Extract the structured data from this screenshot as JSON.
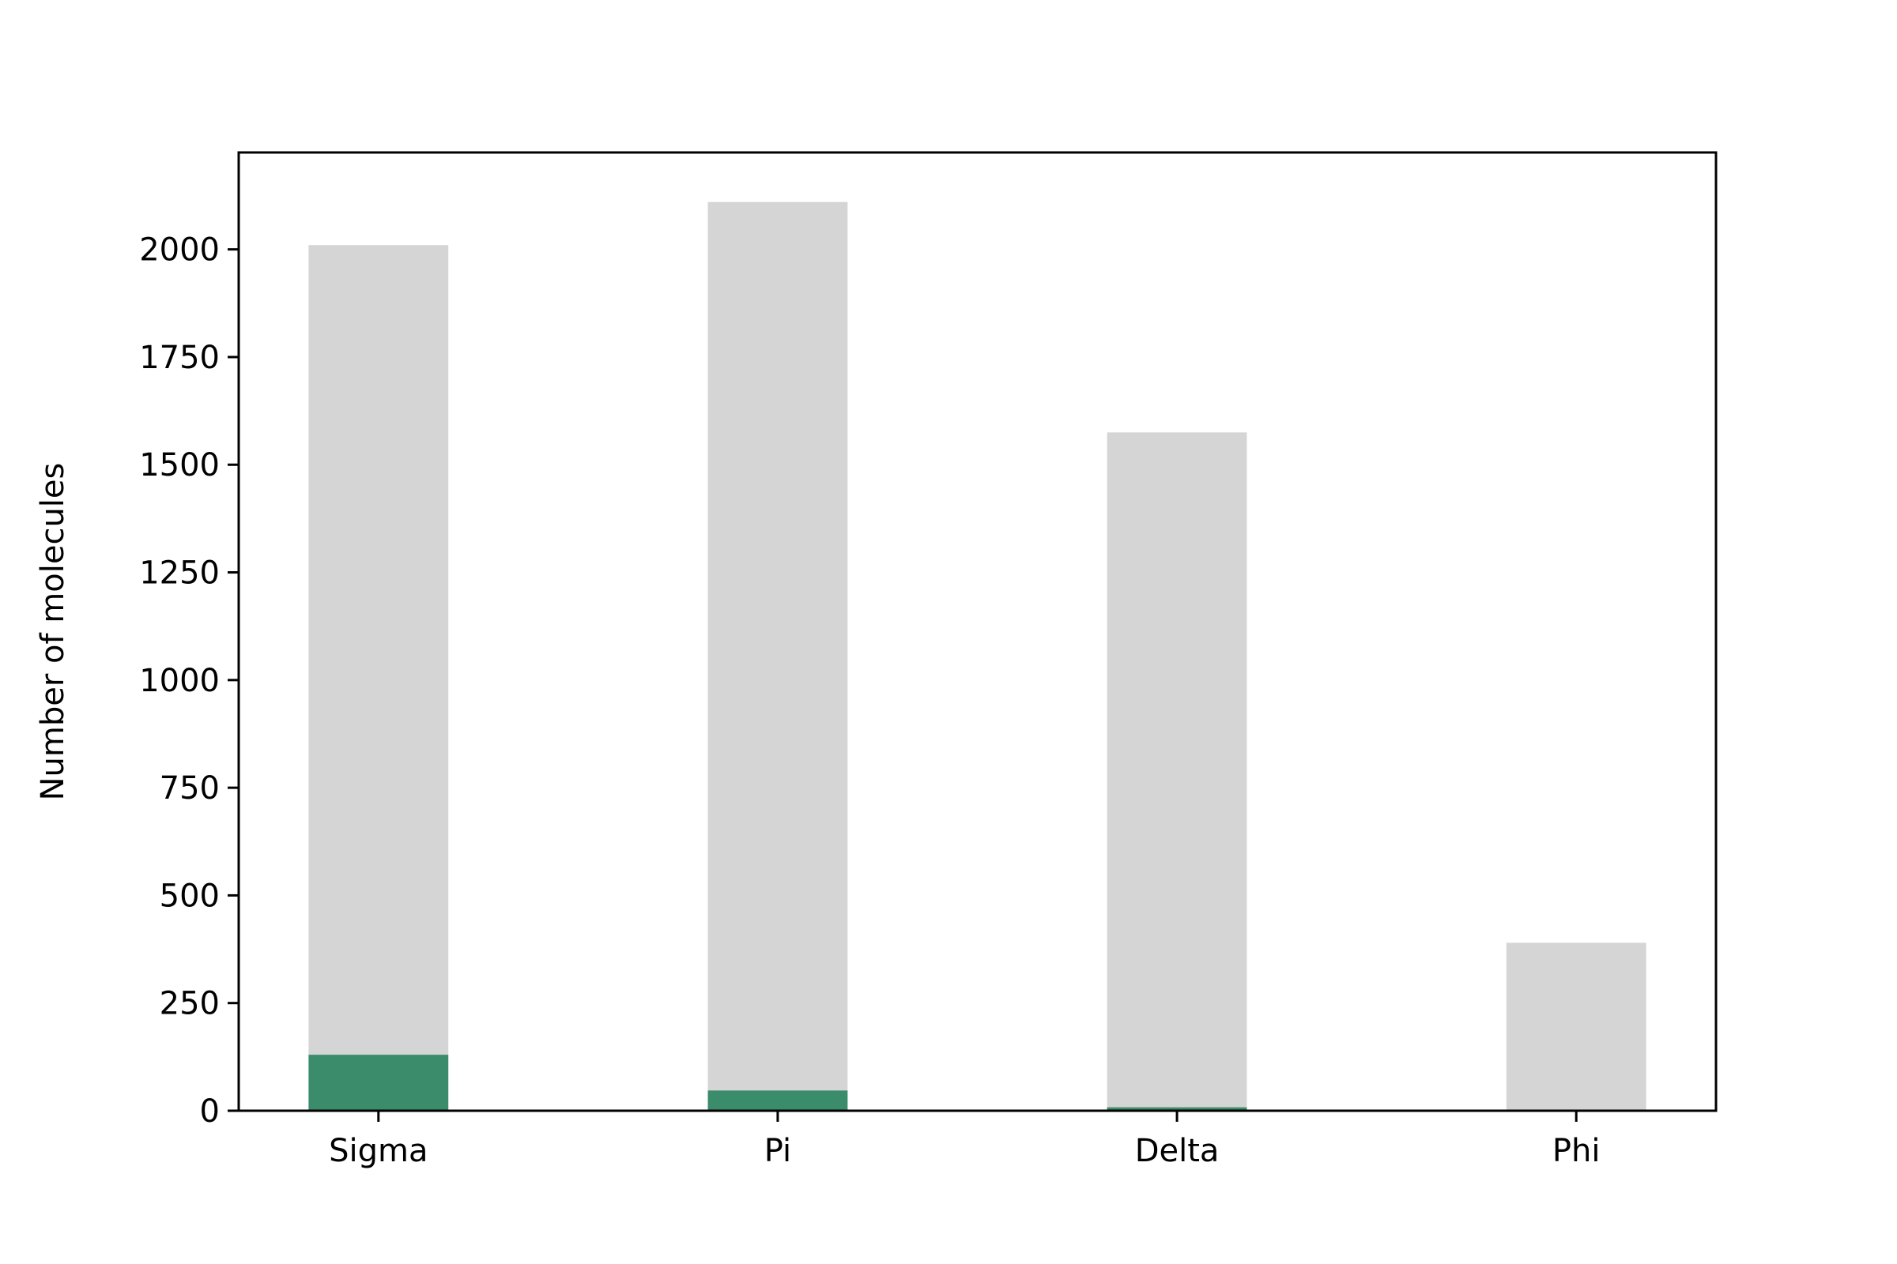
{
  "chart_data": {
    "type": "bar",
    "categories": [
      "Sigma",
      "Pi",
      "Delta",
      "Phi"
    ],
    "series": [
      {
        "values": [
          2010,
          2110,
          1575,
          390
        ],
        "color": "#d5d5d5"
      },
      {
        "values": [
          130,
          47,
          8,
          0
        ],
        "color": "#3a8c6a"
      }
    ],
    "overlay": true,
    "xlabel": "",
    "ylabel": "Number of molecules",
    "ylim": [
      0,
      2225
    ],
    "yticks": [
      0,
      250,
      500,
      750,
      1000,
      1250,
      1500,
      1750,
      2000
    ],
    "grid": false,
    "legend": "none"
  }
}
